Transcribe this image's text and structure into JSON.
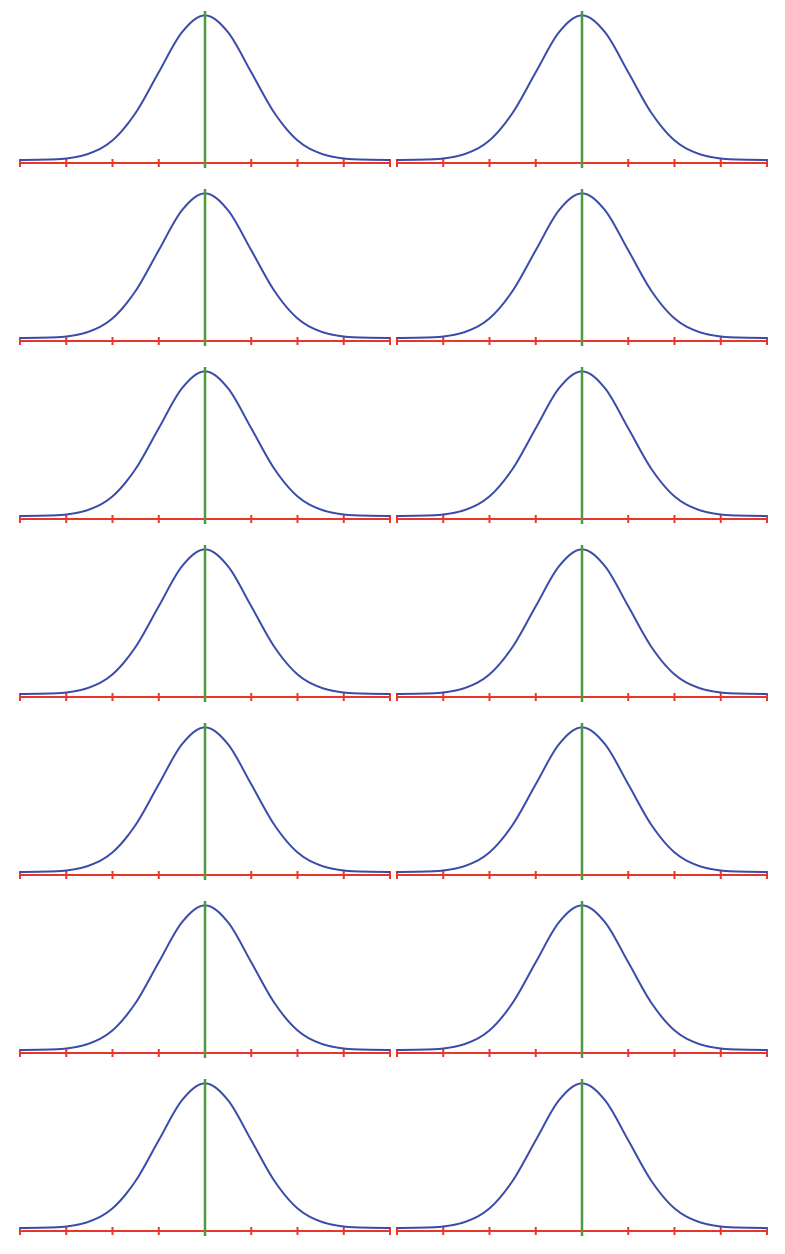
{
  "chart_data": [
    {
      "type": "line",
      "x": [
        -4,
        -3.5,
        -3,
        -2.5,
        -2,
        -1.5,
        -1,
        -0.5,
        0,
        0.5,
        1,
        1.5,
        2,
        2.5,
        3,
        3.5,
        4
      ],
      "values": [
        0.0,
        0.001,
        0.004,
        0.018,
        0.054,
        0.13,
        0.242,
        0.352,
        0.399,
        0.352,
        0.242,
        0.13,
        0.054,
        0.018,
        0.004,
        0.001,
        0.0
      ],
      "color": "#3a4ca8",
      "axis_color": "#e8362b",
      "mean_line": 0,
      "mean_color": "#4e9a3f",
      "xlim": [
        -4,
        4
      ],
      "ylim": [
        0,
        0.4
      ],
      "xticks": [
        -4,
        -3,
        -2,
        -1,
        0,
        1,
        2,
        3,
        4
      ]
    },
    {
      "type": "line",
      "x": [
        -4,
        -3.5,
        -3,
        -2.5,
        -2,
        -1.5,
        -1,
        -0.5,
        0,
        0.5,
        1,
        1.5,
        2,
        2.5,
        3,
        3.5,
        4
      ],
      "values": [
        0.0,
        0.001,
        0.004,
        0.018,
        0.054,
        0.13,
        0.242,
        0.352,
        0.399,
        0.352,
        0.242,
        0.13,
        0.054,
        0.018,
        0.004,
        0.001,
        0.0
      ],
      "color": "#3a4ca8",
      "axis_color": "#e8362b",
      "mean_line": 0,
      "mean_color": "#4e9a3f",
      "xlim": [
        -4,
        4
      ],
      "ylim": [
        0,
        0.4
      ],
      "xticks": [
        -4,
        -3,
        -2,
        -1,
        0,
        1,
        2,
        3,
        4
      ]
    },
    {
      "type": "line",
      "x": [
        -4,
        -3.5,
        -3,
        -2.5,
        -2,
        -1.5,
        -1,
        -0.5,
        0,
        0.5,
        1,
        1.5,
        2,
        2.5,
        3,
        3.5,
        4
      ],
      "values": [
        0.0,
        0.001,
        0.004,
        0.018,
        0.054,
        0.13,
        0.242,
        0.352,
        0.399,
        0.352,
        0.242,
        0.13,
        0.054,
        0.018,
        0.004,
        0.001,
        0.0
      ],
      "color": "#3a4ca8",
      "axis_color": "#e8362b",
      "mean_line": 0,
      "mean_color": "#4e9a3f",
      "xlim": [
        -4,
        4
      ],
      "ylim": [
        0,
        0.4
      ],
      "xticks": [
        -4,
        -3,
        -2,
        -1,
        0,
        1,
        2,
        3,
        4
      ]
    },
    {
      "type": "line",
      "x": [
        -4,
        -3.5,
        -3,
        -2.5,
        -2,
        -1.5,
        -1,
        -0.5,
        0,
        0.5,
        1,
        1.5,
        2,
        2.5,
        3,
        3.5,
        4
      ],
      "values": [
        0.0,
        0.001,
        0.004,
        0.018,
        0.054,
        0.13,
        0.242,
        0.352,
        0.399,
        0.352,
        0.242,
        0.13,
        0.054,
        0.018,
        0.004,
        0.001,
        0.0
      ],
      "color": "#3a4ca8",
      "axis_color": "#e8362b",
      "mean_line": 0,
      "mean_color": "#4e9a3f",
      "xlim": [
        -4,
        4
      ],
      "ylim": [
        0,
        0.4
      ],
      "xticks": [
        -4,
        -3,
        -2,
        -1,
        0,
        1,
        2,
        3,
        4
      ]
    },
    {
      "type": "line",
      "x": [
        -4,
        -3.5,
        -3,
        -2.5,
        -2,
        -1.5,
        -1,
        -0.5,
        0,
        0.5,
        1,
        1.5,
        2,
        2.5,
        3,
        3.5,
        4
      ],
      "values": [
        0.0,
        0.001,
        0.004,
        0.018,
        0.054,
        0.13,
        0.242,
        0.352,
        0.399,
        0.352,
        0.242,
        0.13,
        0.054,
        0.018,
        0.004,
        0.001,
        0.0
      ],
      "color": "#3a4ca8",
      "axis_color": "#e8362b",
      "mean_line": 0,
      "mean_color": "#4e9a3f",
      "xlim": [
        -4,
        4
      ],
      "ylim": [
        0,
        0.4
      ],
      "xticks": [
        -4,
        -3,
        -2,
        -1,
        0,
        1,
        2,
        3,
        4
      ]
    },
    {
      "type": "line",
      "x": [
        -4,
        -3.5,
        -3,
        -2.5,
        -2,
        -1.5,
        -1,
        -0.5,
        0,
        0.5,
        1,
        1.5,
        2,
        2.5,
        3,
        3.5,
        4
      ],
      "values": [
        0.0,
        0.001,
        0.004,
        0.018,
        0.054,
        0.13,
        0.242,
        0.352,
        0.399,
        0.352,
        0.242,
        0.13,
        0.054,
        0.018,
        0.004,
        0.001,
        0.0
      ],
      "color": "#3a4ca8",
      "axis_color": "#e8362b",
      "mean_line": 0,
      "mean_color": "#4e9a3f",
      "xlim": [
        -4,
        4
      ],
      "ylim": [
        0,
        0.4
      ],
      "xticks": [
        -4,
        -3,
        -2,
        -1,
        0,
        1,
        2,
        3,
        4
      ]
    },
    {
      "type": "line",
      "x": [
        -4,
        -3.5,
        -3,
        -2.5,
        -2,
        -1.5,
        -1,
        -0.5,
        0,
        0.5,
        1,
        1.5,
        2,
        2.5,
        3,
        3.5,
        4
      ],
      "values": [
        0.0,
        0.001,
        0.004,
        0.018,
        0.054,
        0.13,
        0.242,
        0.352,
        0.399,
        0.352,
        0.242,
        0.13,
        0.054,
        0.018,
        0.004,
        0.001,
        0.0
      ],
      "color": "#3a4ca8",
      "axis_color": "#e8362b",
      "mean_line": 0,
      "mean_color": "#4e9a3f",
      "xlim": [
        -4,
        4
      ],
      "ylim": [
        0,
        0.4
      ],
      "xticks": [
        -4,
        -3,
        -2,
        -1,
        0,
        1,
        2,
        3,
        4
      ]
    },
    {
      "type": "line",
      "x": [
        -4,
        -3.5,
        -3,
        -2.5,
        -2,
        -1.5,
        -1,
        -0.5,
        0,
        0.5,
        1,
        1.5,
        2,
        2.5,
        3,
        3.5,
        4
      ],
      "values": [
        0.0,
        0.001,
        0.004,
        0.018,
        0.054,
        0.13,
        0.242,
        0.352,
        0.399,
        0.352,
        0.242,
        0.13,
        0.054,
        0.018,
        0.004,
        0.001,
        0.0
      ],
      "color": "#3a4ca8",
      "axis_color": "#e8362b",
      "mean_line": 0,
      "mean_color": "#4e9a3f",
      "xlim": [
        -4,
        4
      ],
      "ylim": [
        0,
        0.4
      ],
      "xticks": [
        -4,
        -3,
        -2,
        -1,
        0,
        1,
        2,
        3,
        4
      ]
    },
    {
      "type": "line",
      "x": [
        -4,
        -3.5,
        -3,
        -2.5,
        -2,
        -1.5,
        -1,
        -0.5,
        0,
        0.5,
        1,
        1.5,
        2,
        2.5,
        3,
        3.5,
        4
      ],
      "values": [
        0.0,
        0.001,
        0.004,
        0.018,
        0.054,
        0.13,
        0.242,
        0.352,
        0.399,
        0.352,
        0.242,
        0.13,
        0.054,
        0.018,
        0.004,
        0.001,
        0.0
      ],
      "color": "#3a4ca8",
      "axis_color": "#e8362b",
      "mean_line": 0,
      "mean_color": "#4e9a3f",
      "xlim": [
        -4,
        4
      ],
      "ylim": [
        0,
        0.4
      ],
      "xticks": [
        -4,
        -3,
        -2,
        -1,
        0,
        1,
        2,
        3,
        4
      ]
    },
    {
      "type": "line",
      "x": [
        -4,
        -3.5,
        -3,
        -2.5,
        -2,
        -1.5,
        -1,
        -0.5,
        0,
        0.5,
        1,
        1.5,
        2,
        2.5,
        3,
        3.5,
        4
      ],
      "values": [
        0.0,
        0.001,
        0.004,
        0.018,
        0.054,
        0.13,
        0.242,
        0.352,
        0.399,
        0.352,
        0.242,
        0.13,
        0.054,
        0.018,
        0.004,
        0.001,
        0.0
      ],
      "color": "#3a4ca8",
      "axis_color": "#e8362b",
      "mean_line": 0,
      "mean_color": "#4e9a3f",
      "xlim": [
        -4,
        4
      ],
      "ylim": [
        0,
        0.4
      ],
      "xticks": [
        -4,
        -3,
        -2,
        -1,
        0,
        1,
        2,
        3,
        4
      ]
    },
    {
      "type": "line",
      "x": [
        -4,
        -3.5,
        -3,
        -2.5,
        -2,
        -1.5,
        -1,
        -0.5,
        0,
        0.5,
        1,
        1.5,
        2,
        2.5,
        3,
        3.5,
        4
      ],
      "values": [
        0.0,
        0.001,
        0.004,
        0.018,
        0.054,
        0.13,
        0.242,
        0.352,
        0.399,
        0.352,
        0.242,
        0.13,
        0.054,
        0.018,
        0.004,
        0.001,
        0.0
      ],
      "color": "#3a4ca8",
      "axis_color": "#e8362b",
      "mean_line": 0,
      "mean_color": "#4e9a3f",
      "xlim": [
        -4,
        4
      ],
      "ylim": [
        0,
        0.4
      ],
      "xticks": [
        -4,
        -3,
        -2,
        -1,
        0,
        1,
        2,
        3,
        4
      ]
    },
    {
      "type": "line",
      "x": [
        -4,
        -3.5,
        -3,
        -2.5,
        -2,
        -1.5,
        -1,
        -0.5,
        0,
        0.5,
        1,
        1.5,
        2,
        2.5,
        3,
        3.5,
        4
      ],
      "values": [
        0.0,
        0.001,
        0.004,
        0.018,
        0.054,
        0.13,
        0.242,
        0.352,
        0.399,
        0.352,
        0.242,
        0.13,
        0.054,
        0.018,
        0.004,
        0.001,
        0.0
      ],
      "color": "#3a4ca8",
      "axis_color": "#e8362b",
      "mean_line": 0,
      "mean_color": "#4e9a3f",
      "xlim": [
        -4,
        4
      ],
      "ylim": [
        0,
        0.4
      ],
      "xticks": [
        -4,
        -3,
        -2,
        -1,
        0,
        1,
        2,
        3,
        4
      ]
    },
    {
      "type": "line",
      "x": [
        -4,
        -3.5,
        -3,
        -2.5,
        -2,
        -1.5,
        -1,
        -0.5,
        0,
        0.5,
        1,
        1.5,
        2,
        2.5,
        3,
        3.5,
        4
      ],
      "values": [
        0.0,
        0.001,
        0.004,
        0.018,
        0.054,
        0.13,
        0.242,
        0.352,
        0.399,
        0.352,
        0.242,
        0.13,
        0.054,
        0.018,
        0.004,
        0.001,
        0.0
      ],
      "color": "#3a4ca8",
      "axis_color": "#e8362b",
      "mean_line": 0,
      "mean_color": "#4e9a3f",
      "xlim": [
        -4,
        4
      ],
      "ylim": [
        0,
        0.4
      ],
      "xticks": [
        -4,
        -3,
        -2,
        -1,
        0,
        1,
        2,
        3,
        4
      ]
    },
    {
      "type": "line",
      "x": [
        -4,
        -3.5,
        -3,
        -2.5,
        -2,
        -1.5,
        -1,
        -0.5,
        0,
        0.5,
        1,
        1.5,
        2,
        2.5,
        3,
        3.5,
        4
      ],
      "values": [
        0.0,
        0.001,
        0.004,
        0.018,
        0.054,
        0.13,
        0.242,
        0.352,
        0.399,
        0.352,
        0.242,
        0.13,
        0.054,
        0.018,
        0.004,
        0.001,
        0.0
      ],
      "color": "#3a4ca8",
      "axis_color": "#e8362b",
      "mean_line": 0,
      "mean_color": "#4e9a3f",
      "xlim": [
        -4,
        4
      ],
      "ylim": [
        0,
        0.4
      ],
      "xticks": [
        -4,
        -3,
        -2,
        -1,
        0,
        1,
        2,
        3,
        4
      ]
    }
  ]
}
